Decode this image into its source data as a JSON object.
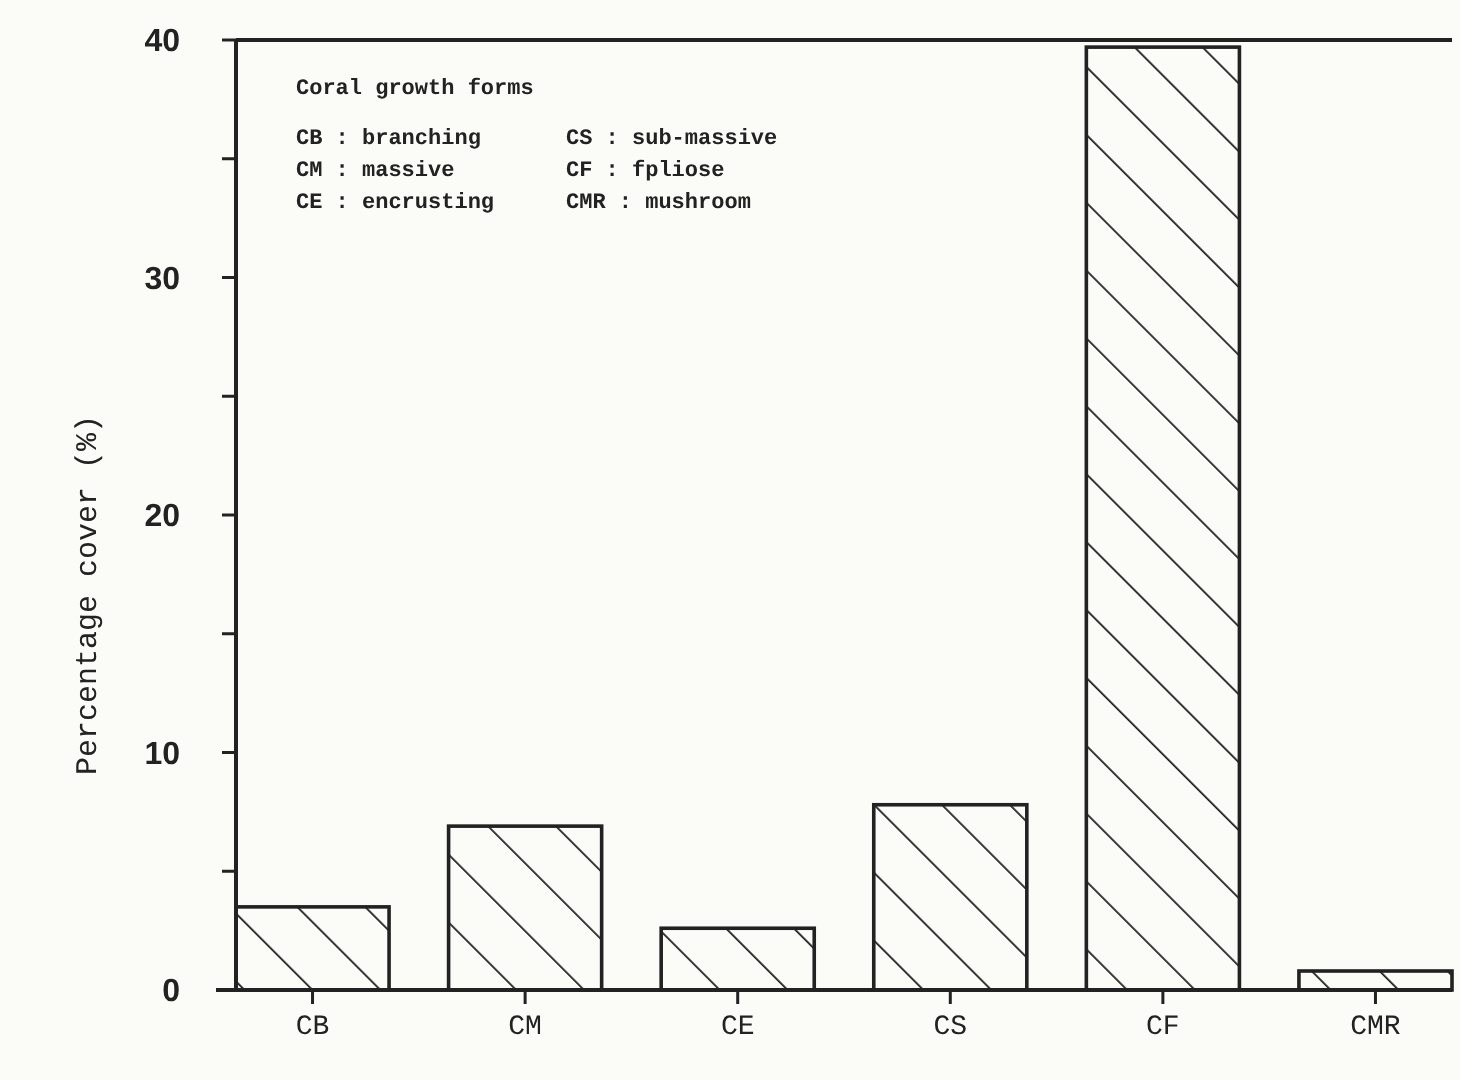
{
  "chart_data": {
    "type": "bar",
    "ylabel": "Percentage cover (%)",
    "categories": [
      "CB",
      "CM",
      "CE",
      "CS",
      "CF",
      "CMR"
    ],
    "values": [
      3.5,
      6.9,
      2.6,
      7.8,
      39.7,
      0.8
    ],
    "color": "#222222",
    "ylim": [
      0,
      40
    ],
    "yticks": [
      0,
      {
        "value": 5,
        "label": null
      },
      10,
      {
        "value": 15,
        "label": null
      },
      20,
      {
        "value": 25,
        "label": null
      },
      30,
      {
        "value": 35,
        "label": null
      },
      40
    ],
    "annotations": [
      "Coral growth forms",
      "CB : branching",
      "CS : sub-massive",
      "CM : massive",
      "CF : fpliose",
      "CE : encrusting",
      "CMR : mushroom"
    ]
  }
}
